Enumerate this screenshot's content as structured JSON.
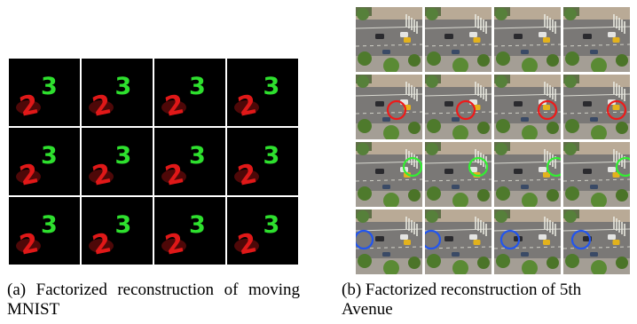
{
  "figure": {
    "panel_a": {
      "rows": 3,
      "cols": 4,
      "digits": [
        "2",
        "3"
      ],
      "digit_colors": {
        "2": "#e01818",
        "3": "#2ee02e"
      },
      "background_color": "#000000",
      "grid_line_color": "#ffffff",
      "caption_label": "(a)",
      "caption_text": "Factorized reconstruction of moving MNIST"
    },
    "panel_b": {
      "rows": 4,
      "cols": 4,
      "circle_colors": [
        "#ee1a1a",
        "#33ee33",
        "#2255ee"
      ],
      "caption_label": "(b)",
      "caption_text": "Factorized reconstruction of 5th Avenue"
    }
  }
}
